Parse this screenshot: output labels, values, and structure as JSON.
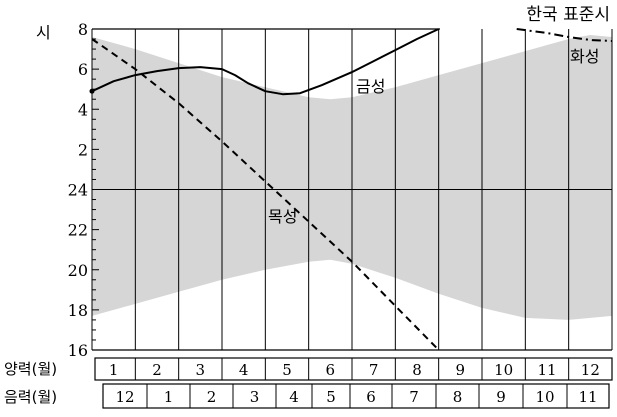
{
  "chart_data": {
    "type": "line",
    "title": "한국 표준시",
    "ylabel": "시",
    "ylim": [
      16,
      32
    ],
    "y_tick_labels": [
      "8",
      "6",
      "4",
      "2",
      "24",
      "22",
      "20",
      "18",
      "16"
    ],
    "row_labels": {
      "solar": "양력(월)",
      "lunar": "음력(월)"
    },
    "solar_months": [
      "1",
      "2",
      "3",
      "4",
      "5",
      "6",
      "7",
      "8",
      "9",
      "10",
      "11",
      "12"
    ],
    "lunar_months": [
      "12",
      "1",
      "2",
      "3",
      "4",
      "5",
      "6",
      "7",
      "8",
      "9",
      "10",
      "11"
    ],
    "night_band": {
      "x": [
        0,
        1,
        2,
        3,
        4,
        5,
        5.5,
        6,
        7,
        8,
        9,
        10,
        11,
        11.5,
        12
      ],
      "sunrise": [
        31.6,
        31.0,
        30.3,
        29.6,
        29.1,
        28.6,
        28.5,
        28.6,
        29.1,
        29.7,
        30.3,
        30.9,
        31.5,
        31.7,
        31.6
      ],
      "sunset": [
        17.7,
        18.3,
        18.9,
        19.5,
        20.0,
        20.4,
        20.5,
        20.3,
        19.6,
        18.8,
        18.1,
        17.6,
        17.5,
        17.6,
        17.7
      ]
    },
    "series": [
      {
        "name": "금성",
        "style": "solid",
        "x": [
          0,
          0.5,
          1,
          1.5,
          2,
          2.5,
          3,
          3.3,
          3.6,
          4,
          4.4,
          4.8,
          5.3,
          6,
          6.5,
          7,
          7.5,
          8
        ],
        "y": [
          28.9,
          29.4,
          29.7,
          29.9,
          30.05,
          30.1,
          30.0,
          29.7,
          29.3,
          28.9,
          28.75,
          28.8,
          29.2,
          29.85,
          30.4,
          30.95,
          31.5,
          32.0
        ]
      },
      {
        "name": "목성",
        "style": "dashed",
        "x": [
          0,
          1,
          2,
          3,
          4,
          5,
          6,
          7,
          8
        ],
        "y": [
          31.5,
          30.0,
          28.3,
          26.4,
          24.4,
          22.4,
          20.4,
          18.2,
          16.0
        ]
      },
      {
        "name": "화성",
        "style": "dashdot",
        "x": [
          9.8,
          10.5,
          11,
          11.5,
          12
        ],
        "y": [
          32.0,
          31.8,
          31.6,
          31.45,
          31.4
        ]
      }
    ]
  }
}
